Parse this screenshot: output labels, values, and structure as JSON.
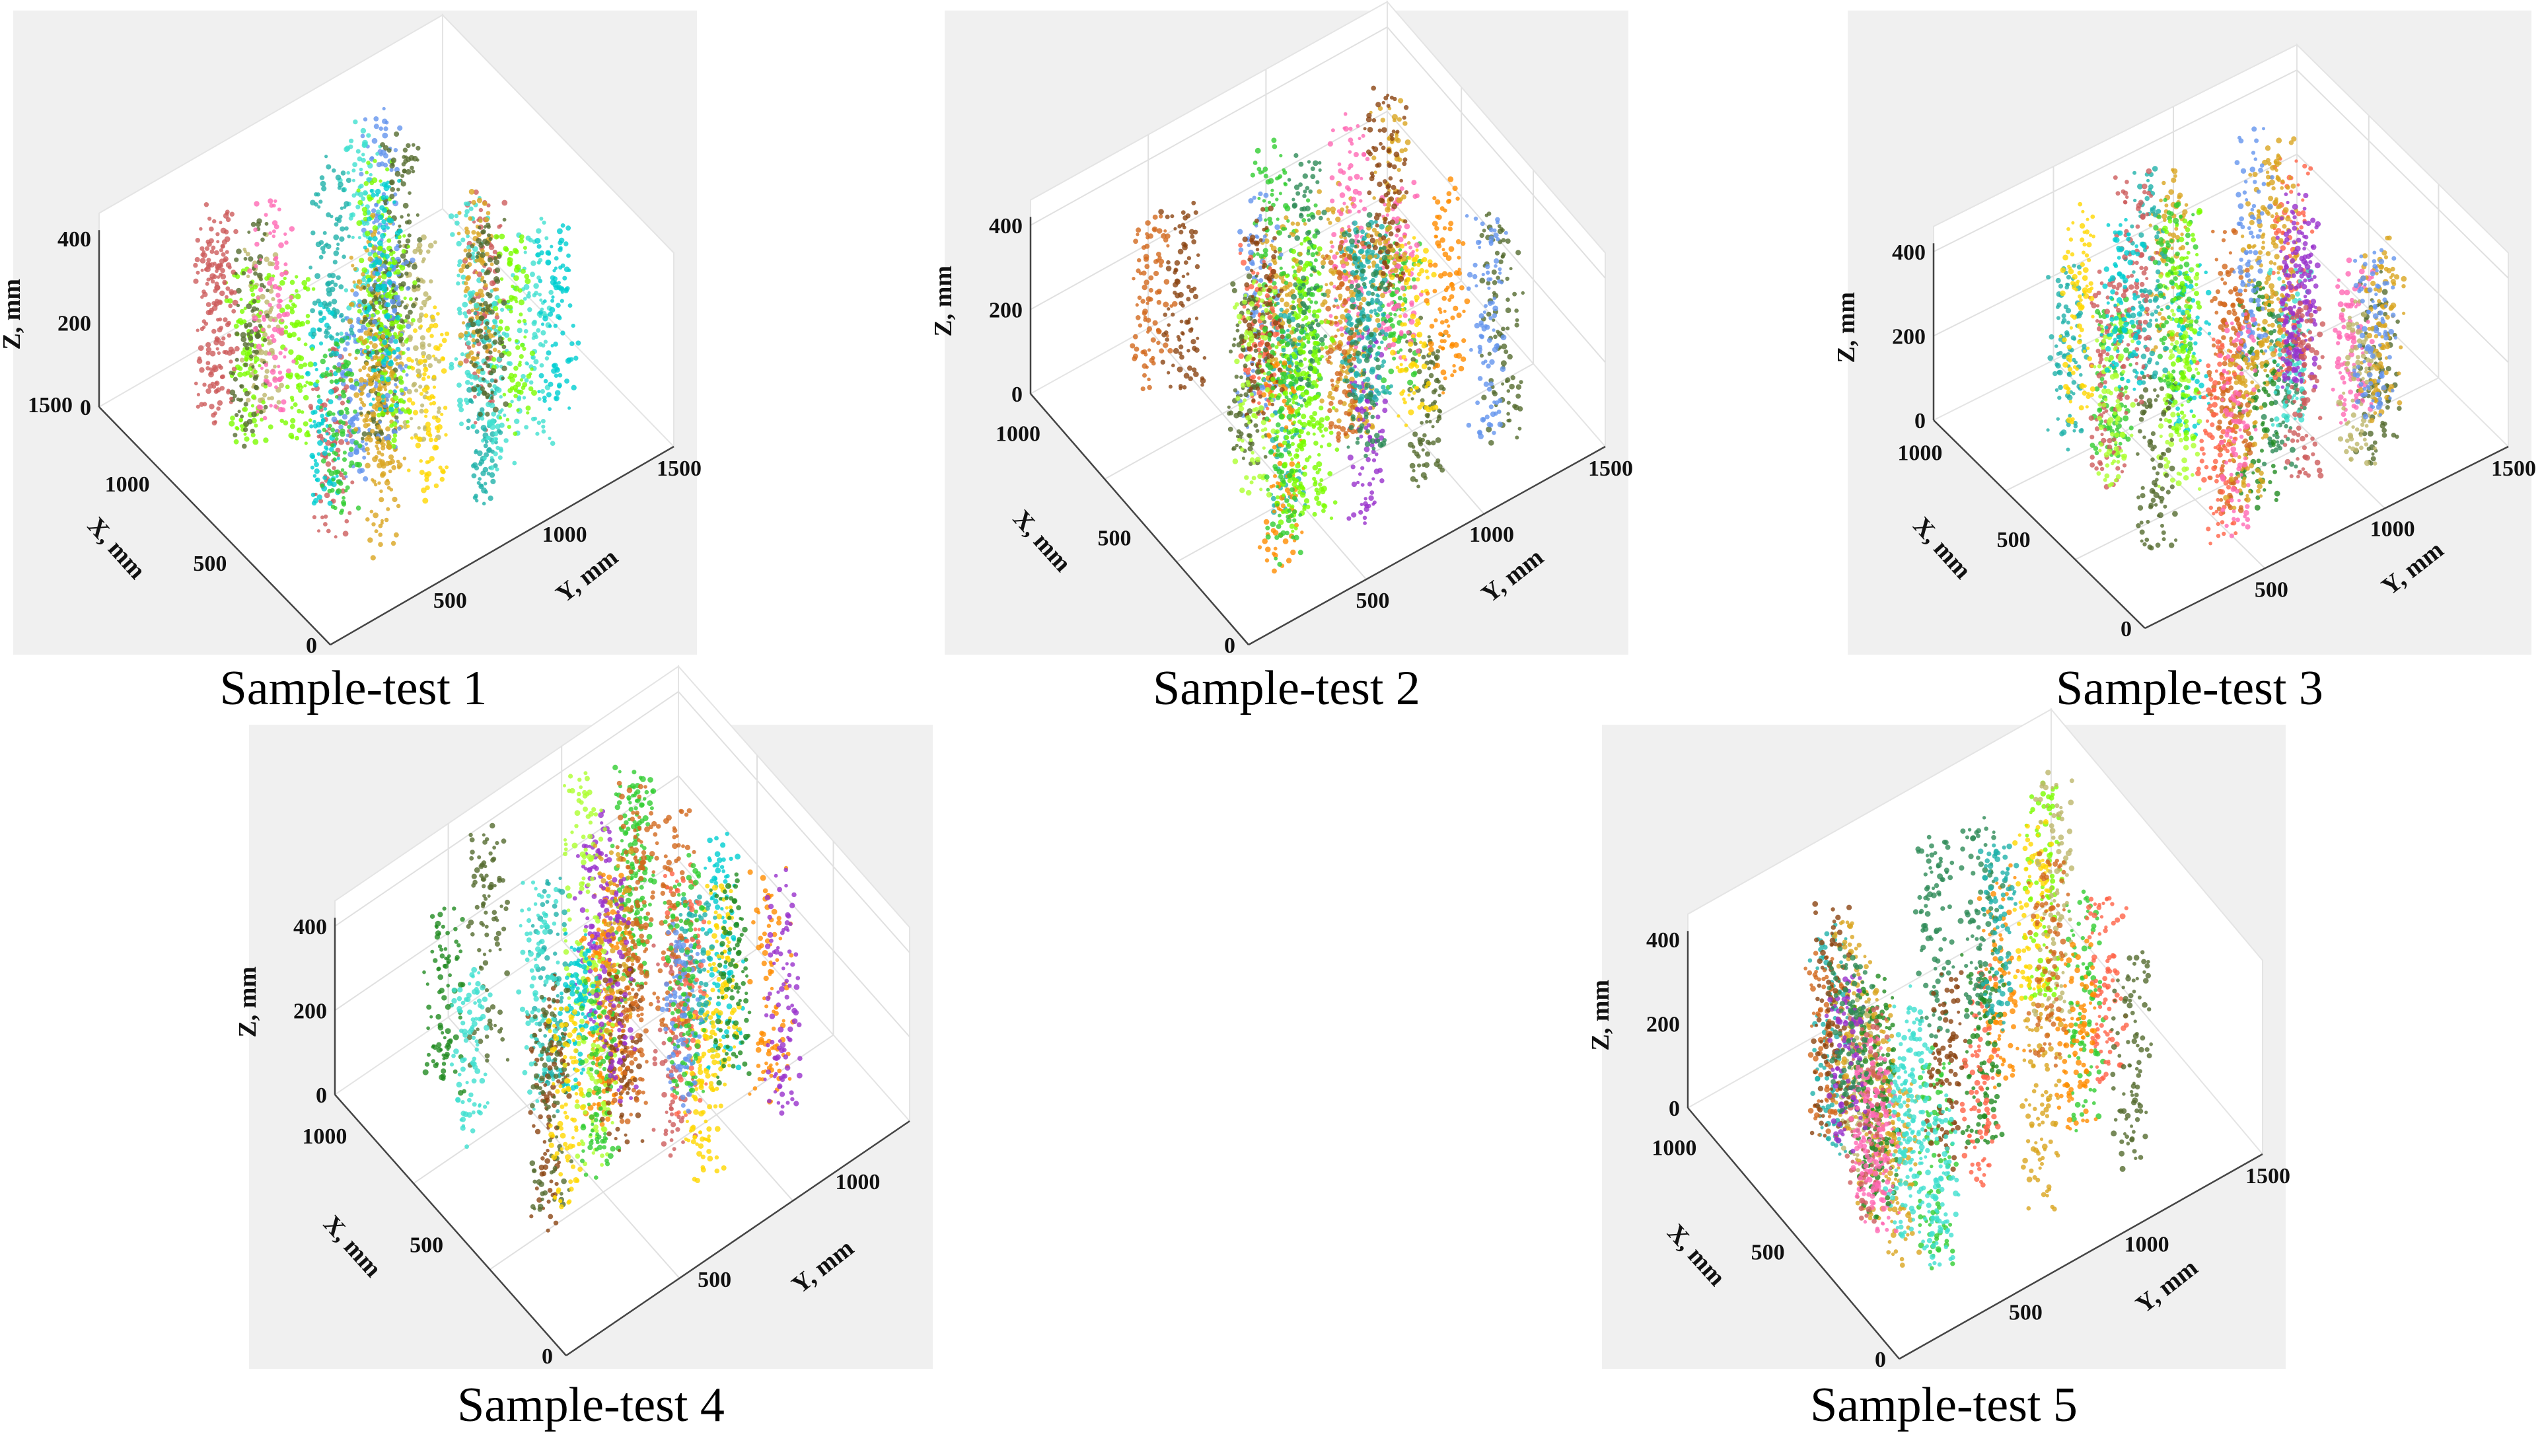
{
  "chart_data": [
    {
      "type": "scatter",
      "title": "Sample-test 1",
      "xlabel": "X, mm",
      "ylabel": "Y, mm",
      "zlabel": "Z, mm",
      "xlim": [
        0,
        1500
      ],
      "ylim": [
        0,
        1500
      ],
      "zlim": [
        0,
        400
      ],
      "x_ticks": [
        "500",
        "1000",
        "1500"
      ],
      "y_ticks": [
        "500",
        "1000",
        "1500"
      ],
      "z_ticks": [
        "0",
        "200",
        "400"
      ],
      "grid": false,
      "series_seed": 11
    },
    {
      "type": "scatter",
      "title": "Sample-test 2",
      "xlabel": "X, mm",
      "ylabel": "Y, mm",
      "zlabel": "Z, mm",
      "xlim": [
        0,
        1200
      ],
      "ylim": [
        0,
        1500
      ],
      "zlim": [
        0,
        400
      ],
      "x_ticks": [
        "500",
        "1000"
      ],
      "y_ticks": [
        "500",
        "1000",
        "1500"
      ],
      "z_ticks": [
        "0",
        "200",
        "400"
      ],
      "grid": true,
      "series_seed": 23
    },
    {
      "type": "scatter",
      "title": "Sample-test 3",
      "xlabel": "X, mm",
      "ylabel": "Y, mm",
      "zlabel": "Z, mm",
      "xlim": [
        0,
        1200
      ],
      "ylim": [
        0,
        1500
      ],
      "zlim": [
        0,
        400
      ],
      "x_ticks": [
        "500",
        "1000"
      ],
      "y_ticks": [
        "500",
        "1000",
        "1500"
      ],
      "z_ticks": [
        "0",
        "200",
        "400"
      ],
      "grid": true,
      "series_seed": 37
    },
    {
      "type": "scatter",
      "title": "Sample-test 4",
      "xlabel": "X, mm",
      "ylabel": "Y, mm",
      "zlabel": "Z, mm",
      "xlim": [
        0,
        1200
      ],
      "ylim": [
        0,
        1200
      ],
      "zlim": [
        0,
        400
      ],
      "x_ticks": [
        "500",
        "1000"
      ],
      "y_ticks": [
        "500",
        "1000"
      ],
      "z_ticks": [
        "0",
        "200",
        "400"
      ],
      "grid": true,
      "series_seed": 41
    },
    {
      "type": "scatter",
      "title": "Sample-test 5",
      "xlabel": "X, mm",
      "ylabel": "Y, mm",
      "zlabel": "Z, mm",
      "xlim": [
        0,
        1200
      ],
      "ylim": [
        0,
        1500
      ],
      "zlim": [
        0,
        400
      ],
      "x_ticks": [
        "500",
        "1000"
      ],
      "y_ticks": [
        "500",
        "1000",
        "1500"
      ],
      "z_ticks": [
        "0",
        "200",
        "400"
      ],
      "grid": false,
      "series_seed": 53
    }
  ],
  "palette": [
    "#2e8b57",
    "#00ced1",
    "#7cfc00",
    "#ff6347",
    "#daa520",
    "#32cd32",
    "#ff69b4",
    "#8b4513",
    "#40e0d0",
    "#adff2f",
    "#9932cc",
    "#ff8c00",
    "#556b2f",
    "#20b2aa",
    "#cd5c5c",
    "#bdb76b",
    "#6495ed",
    "#ffd700",
    "#228b22",
    "#d2691e"
  ]
}
